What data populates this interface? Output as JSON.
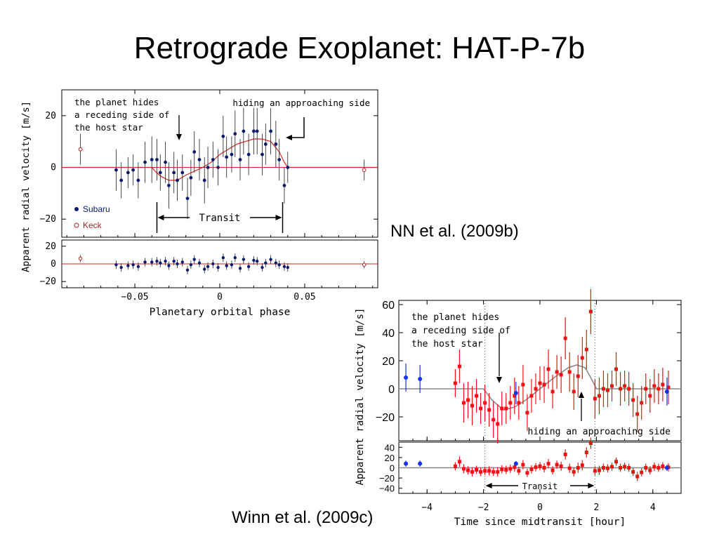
{
  "slide": {
    "title": "Retrograde Exoplanet: HAT-P-7b",
    "citation_nn": "NN et al. (2009b)",
    "citation_winn": "Winn et al. (2009c)"
  },
  "colors": {
    "subaru": "#0a1a6e",
    "keck": "#b22222",
    "model_left": "#d62020",
    "winn_red": "#ee1111",
    "winn_blue": "#1133ee",
    "winn_model": "#888888"
  },
  "chart_data": [
    {
      "type": "scatter",
      "id": "nn2009b",
      "xlabel": "Planetary orbital phase",
      "ylabel": "Apparent radial velocity [m/s]",
      "xlim": [
        -0.093,
        0.093
      ],
      "ylim": [
        -27,
        30
      ],
      "resid_ylim": [
        -27,
        27
      ],
      "x_ticks": [
        -0.05,
        0,
        0.05
      ],
      "x_tick_labels": [
        "−0.05",
        "0",
        "0.05"
      ],
      "y_ticks": [
        20,
        0,
        -20
      ],
      "y_tick_labels": [
        "20",
        "0",
        "−20"
      ],
      "resid_ticks": [
        20,
        0,
        -20
      ],
      "resid_tick_labels": [
        "20",
        "0",
        "−20"
      ],
      "legend": [
        "Subaru",
        "Keck"
      ],
      "legend_placement": "lower-left",
      "annotations": {
        "left": [
          "the planet hides",
          "a receding side of",
          "the host star"
        ],
        "right": "hiding an approaching side",
        "transit": "Transit"
      },
      "transit_window": [
        -0.037,
        0.037
      ],
      "subaru": {
        "name": "Subaru",
        "x": [
          -0.061,
          -0.058,
          -0.054,
          -0.051,
          -0.048,
          -0.044,
          -0.04,
          -0.037,
          -0.035,
          -0.032,
          -0.03,
          -0.027,
          -0.025,
          -0.022,
          -0.019,
          -0.017,
          -0.015,
          -0.012,
          -0.009,
          -0.007,
          -0.004,
          -0.001,
          0.002,
          0.004,
          0.007,
          0.009,
          0.012,
          0.014,
          0.017,
          0.02,
          0.022,
          0.025,
          0.027,
          0.03,
          0.033,
          0.035,
          0.038,
          0.04
        ],
        "y": [
          -1,
          -5,
          -2,
          -1,
          -5,
          2,
          3,
          3,
          -2,
          2,
          -7,
          -2,
          -5,
          -2,
          -12,
          -4,
          6,
          3,
          -5,
          0,
          3,
          0,
          12,
          4,
          5,
          13,
          3,
          14,
          5,
          14,
          14,
          5,
          9,
          14,
          9,
          3,
          -7,
          0
        ],
        "err": [
          8,
          7,
          6,
          6,
          7,
          8,
          9,
          8,
          7,
          8,
          9,
          8,
          8,
          7,
          8,
          7,
          8,
          8,
          9,
          8,
          7,
          7,
          8,
          8,
          7,
          9,
          8,
          9,
          8,
          9,
          9,
          8,
          8,
          9,
          9,
          8,
          7,
          6
        ],
        "resid": [
          -1,
          -4,
          -2,
          -1,
          -3,
          2,
          2,
          3,
          1,
          3,
          -2,
          3,
          0,
          2,
          -7,
          -1,
          5,
          1,
          -6,
          -3,
          0,
          -4,
          7,
          -2,
          -1,
          7,
          -5,
          5,
          -3,
          4,
          3,
          -4,
          1,
          5,
          1,
          -1,
          -3,
          -4
        ]
      },
      "keck": {
        "name": "Keck",
        "x": [
          -0.082,
          0.085
        ],
        "y": [
          7,
          -1
        ],
        "err": [
          6,
          4
        ],
        "resid": [
          6,
          -1
        ]
      },
      "model": {
        "x": [
          -0.093,
          -0.04,
          -0.038,
          -0.035,
          -0.03,
          -0.025,
          -0.02,
          -0.015,
          -0.01,
          -0.005,
          0.0,
          0.005,
          0.01,
          0.015,
          0.02,
          0.025,
          0.03,
          0.035,
          0.038,
          0.04,
          0.093
        ],
        "y": [
          0,
          0,
          -1.5,
          -3.3,
          -5,
          -5,
          -3,
          -1.5,
          0,
          2,
          5,
          7,
          9,
          10,
          11,
          11,
          10,
          6,
          2,
          0,
          0
        ]
      }
    },
    {
      "type": "scatter",
      "id": "winn2009c",
      "xlabel": "Time since midtransit [hour]",
      "ylabel": "Apparent radial velocity [m/s]",
      "xlim": [
        -5.0,
        5.0
      ],
      "ylim": [
        -37,
        63
      ],
      "resid_ylim": [
        -50,
        50
      ],
      "x_ticks": [
        -4,
        -2,
        0,
        2,
        4
      ],
      "x_tick_labels": [
        "−4",
        "−2",
        "0",
        "2",
        "4"
      ],
      "y_ticks": [
        60,
        40,
        20,
        0,
        -20
      ],
      "y_tick_labels": [
        "60",
        "40",
        "20",
        "0",
        "−20"
      ],
      "resid_ticks": [
        40,
        20,
        0,
        -20,
        -40
      ],
      "resid_tick_labels": [
        "40",
        "20",
        "0",
        "−20",
        "−40"
      ],
      "annotations": {
        "left": [
          "the planet hides",
          "a receding side of",
          "the host star"
        ],
        "right": "hiding an approaching side",
        "transit": "Transit"
      },
      "transit_window": [
        -1.95,
        1.95
      ],
      "red": {
        "x": [
          -3.0,
          -2.85,
          -2.7,
          -2.55,
          -2.4,
          -2.25,
          -2.1,
          -1.95,
          -1.8,
          -1.65,
          -1.5,
          -1.35,
          -1.2,
          -1.05,
          -0.9,
          -0.75,
          -0.6,
          -0.45,
          -0.3,
          -0.15,
          0.0,
          0.15,
          0.3,
          0.45,
          0.6,
          0.75,
          0.9,
          1.05,
          1.2,
          1.35,
          1.5,
          1.65,
          1.8,
          1.95,
          2.1,
          2.25,
          2.4,
          2.55,
          2.7,
          2.85,
          3.0,
          3.15,
          3.3,
          3.45,
          3.6,
          3.75,
          3.9,
          4.05,
          4.2,
          4.35,
          4.55
        ],
        "y": [
          4,
          16,
          -10,
          -8,
          -12,
          -5,
          -14,
          -10,
          -15,
          -22,
          -25,
          -14,
          -14,
          -10,
          -5,
          -10,
          3,
          -17,
          -5,
          0,
          4,
          3,
          14,
          -2,
          12,
          10,
          36,
          12,
          -2,
          9,
          22,
          28,
          55,
          -7,
          -5,
          0,
          -1,
          2,
          14,
          0,
          2,
          0,
          -8,
          -18,
          -10,
          0,
          -5,
          2,
          0,
          3,
          1
        ],
        "err": [
          10,
          12,
          14,
          13,
          14,
          12,
          11,
          13,
          12,
          13,
          14,
          12,
          11,
          12,
          13,
          12,
          14,
          13,
          12,
          11,
          12,
          13,
          14,
          12,
          12,
          13,
          15,
          14,
          13,
          15,
          15,
          14,
          16,
          14,
          13,
          13,
          12,
          11,
          12,
          12,
          11,
          12,
          12,
          13,
          12,
          11,
          12,
          12,
          11,
          12,
          12
        ],
        "resid": [
          3,
          12,
          -2,
          -5,
          -8,
          -4,
          -8,
          -6,
          -6,
          -8,
          -8,
          -3,
          -4,
          -2,
          1,
          -6,
          6,
          -10,
          -3,
          1,
          3,
          0,
          8,
          -5,
          6,
          3,
          26,
          -1,
          -8,
          0,
          5,
          30,
          48,
          -6,
          -5,
          0,
          -1,
          2,
          12,
          0,
          2,
          0,
          -8,
          -17,
          -9,
          0,
          -5,
          2,
          0,
          3,
          1
        ],
        "resid_err": [
          8,
          10,
          9,
          8,
          9,
          8,
          8,
          8,
          9,
          8,
          9,
          8,
          8,
          8,
          9,
          8,
          9,
          8,
          8,
          8,
          8,
          9,
          9,
          8,
          8,
          9,
          10,
          9,
          9,
          10,
          10,
          10,
          11,
          9,
          9,
          8,
          8,
          8,
          8,
          8,
          8,
          8,
          8,
          9,
          8,
          8,
          8,
          8,
          8,
          8,
          8
        ]
      },
      "blue": {
        "x": [
          -4.75,
          -4.25,
          -0.85,
          4.5
        ],
        "y": [
          8,
          7,
          -3,
          -2
        ],
        "err": [
          10,
          10,
          8,
          10
        ],
        "resid": [
          8,
          8,
          8,
          0
        ],
        "resid_err": [
          6,
          6,
          5,
          6
        ]
      },
      "model": {
        "x": [
          -5.0,
          -2.0,
          -1.7,
          -1.3,
          -0.9,
          -0.5,
          0.0,
          0.5,
          1.0,
          1.3,
          1.6,
          1.8,
          2.0,
          5.0
        ],
        "y": [
          0,
          0,
          -8,
          -15,
          -13,
          -8,
          0,
          8,
          15,
          17,
          15,
          8,
          0,
          0
        ]
      }
    }
  ]
}
